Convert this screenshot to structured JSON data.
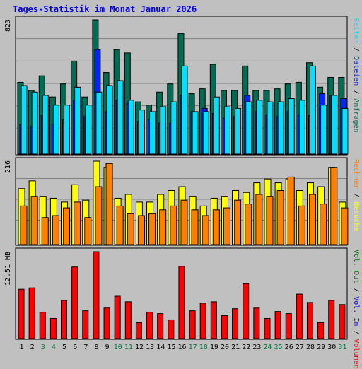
{
  "title": "Tages-Statistik im Monat Januar 2026",
  "colors": {
    "anfragen": "#006c54",
    "dateien": "#0024ff",
    "seiten": "#00e0ff",
    "besuche": "#ffff00",
    "rechner": "#ff8000",
    "volumen": "#ff0000",
    "vol_in": "#0000ff",
    "vol_out": "#008000",
    "weekend_day": "#008040",
    "weekday_day": "#000000",
    "background": "#c0c0c0",
    "grid": "#808080"
  },
  "chart_data": [
    {
      "type": "bar",
      "panel": "requests",
      "y_max_label": "823",
      "ylim": [
        0,
        823
      ],
      "grid": true,
      "categories": [
        "1",
        "2",
        "3",
        "4",
        "5",
        "6",
        "7",
        "8",
        "9",
        "10",
        "11",
        "12",
        "13",
        "14",
        "15",
        "16",
        "17",
        "18",
        "19",
        "20",
        "21",
        "22",
        "23",
        "24",
        "25",
        "26",
        "27",
        "28",
        "29",
        "30",
        "31"
      ],
      "weekend_days": [
        "3",
        "4",
        "10",
        "11",
        "17",
        "18",
        "24",
        "25",
        "31"
      ],
      "series": [
        {
          "name": "Anfragen",
          "values": [
            440,
            390,
            480,
            350,
            430,
            570,
            350,
            823,
            500,
            640,
            620,
            320,
            300,
            380,
            430,
            740,
            370,
            400,
            550,
            390,
            390,
            540,
            390,
            390,
            400,
            430,
            440,
            560,
            410,
            470,
            470
          ]
        },
        {
          "name": "Dateien",
          "values": [
            180,
            170,
            240,
            180,
            210,
            330,
            230,
            640,
            260,
            330,
            310,
            200,
            210,
            190,
            190,
            360,
            260,
            280,
            250,
            220,
            230,
            360,
            260,
            240,
            230,
            260,
            240,
            240,
            370,
            360,
            340
          ]
        },
        {
          "name": "Seiten",
          "values": [
            420,
            380,
            360,
            300,
            300,
            410,
            300,
            380,
            420,
            450,
            330,
            270,
            260,
            290,
            320,
            540,
            260,
            260,
            350,
            290,
            280,
            320,
            330,
            320,
            320,
            340,
            330,
            540,
            300,
            360,
            280
          ]
        }
      ],
      "right_labels": [
        "Anfragen",
        "Dateien",
        "Seiten"
      ]
    },
    {
      "type": "bar",
      "panel": "visits",
      "y_max_label": "216",
      "ylim": [
        0,
        216
      ],
      "grid": true,
      "categories": [
        "1",
        "2",
        "3",
        "4",
        "5",
        "6",
        "7",
        "8",
        "9",
        "10",
        "11",
        "12",
        "13",
        "14",
        "15",
        "16",
        "17",
        "18",
        "19",
        "20",
        "21",
        "22",
        "23",
        "24",
        "25",
        "26",
        "27",
        "28",
        "29",
        "30",
        "31"
      ],
      "series": [
        {
          "name": "Besuche",
          "values": [
            145,
            165,
            125,
            120,
            110,
            155,
            115,
            216,
            200,
            120,
            130,
            110,
            110,
            130,
            140,
            150,
            125,
            100,
            120,
            125,
            140,
            135,
            160,
            170,
            160,
            170,
            140,
            160,
            150,
            200,
            110
          ]
        },
        {
          "name": "Rechner",
          "values": [
            100,
            125,
            70,
            75,
            95,
            110,
            70,
            150,
            210,
            100,
            80,
            75,
            80,
            90,
            100,
            115,
            90,
            75,
            90,
            95,
            115,
            105,
            130,
            125,
            140,
            175,
            100,
            130,
            105,
            200,
            95
          ]
        }
      ],
      "right_labels": [
        "Besuche",
        "Rechner"
      ]
    },
    {
      "type": "bar",
      "panel": "volume",
      "y_max_label": "12.51 MB",
      "ylim": [
        0,
        12.51
      ],
      "grid": false,
      "categories": [
        "1",
        "2",
        "3",
        "4",
        "5",
        "6",
        "7",
        "8",
        "9",
        "10",
        "11",
        "12",
        "13",
        "14",
        "15",
        "16",
        "17",
        "18",
        "19",
        "20",
        "21",
        "22",
        "23",
        "24",
        "25",
        "26",
        "27",
        "28",
        "29",
        "30",
        "31"
      ],
      "series": [
        {
          "name": "Volumen",
          "values": [
            7.1,
            7.3,
            3.8,
            2.9,
            5.5,
            10.3,
            4.0,
            12.51,
            4.4,
            6.1,
            5.3,
            2.3,
            3.8,
            3.6,
            2.7,
            10.4,
            4.0,
            5.1,
            5.3,
            3.3,
            4.3,
            7.9,
            4.4,
            2.9,
            3.9,
            3.6,
            6.4,
            5.2,
            2.3,
            5.5,
            4.9
          ]
        }
      ],
      "right_labels": [
        "Volumen",
        "Vol. In",
        "Vol. Out"
      ]
    }
  ],
  "right_label_sep": " / "
}
